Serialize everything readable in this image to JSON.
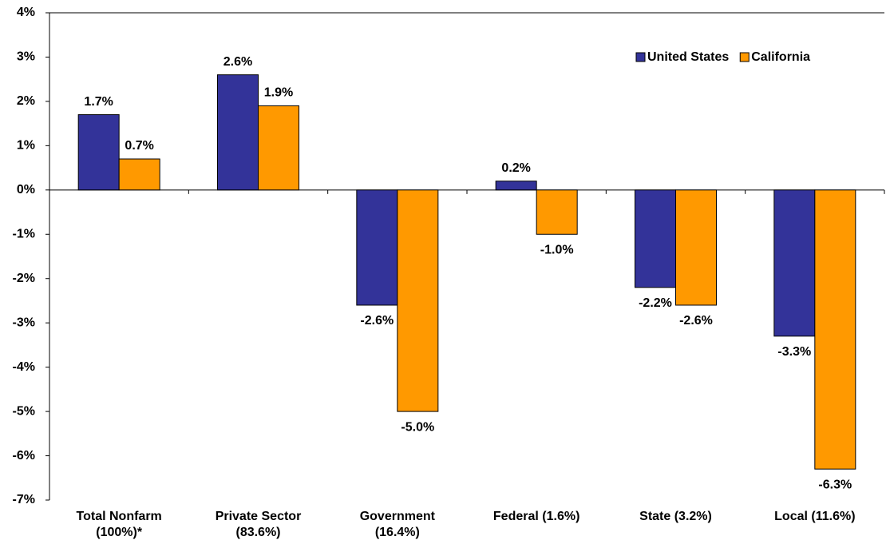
{
  "chart_data": {
    "type": "bar",
    "categories": [
      "Total Nonfarm (100%)*",
      "Private Sector (83.6%)",
      "Government (16.4%)",
      "Federal (1.6%)",
      "State (3.2%)",
      "Local (11.6%)"
    ],
    "series": [
      {
        "name": "United States",
        "color": "#333399",
        "values": [
          1.7,
          2.6,
          -2.6,
          0.2,
          -2.2,
          -3.3
        ],
        "value_labels": [
          "1.7%",
          "2.6%",
          "-2.6%",
          "0.2%",
          "-2.2%",
          "-3.3%"
        ]
      },
      {
        "name": "California",
        "color": "#ff9900",
        "values": [
          0.7,
          1.9,
          -5.0,
          -1.0,
          -2.6,
          -6.3
        ],
        "value_labels": [
          "0.7%",
          "1.9%",
          "-5.0%",
          "-1.0%",
          "-2.6%",
          "-6.3%"
        ]
      }
    ],
    "ylim": [
      -7,
      4
    ],
    "yticks": [
      {
        "value": -7,
        "label": "-7%"
      },
      {
        "value": -6,
        "label": "-6%"
      },
      {
        "value": -5,
        "label": "-5%"
      },
      {
        "value": -4,
        "label": "-4%"
      },
      {
        "value": -3,
        "label": "-3%"
      },
      {
        "value": -2,
        "label": "-2%"
      },
      {
        "value": -1,
        "label": "-1%"
      },
      {
        "value": 0,
        "label": "0%"
      },
      {
        "value": 1,
        "label": "1%"
      },
      {
        "value": 2,
        "label": "2%"
      },
      {
        "value": 3,
        "label": "3%"
      },
      {
        "value": 4,
        "label": "4%"
      }
    ],
    "legend": "top-right",
    "grid": false
  }
}
